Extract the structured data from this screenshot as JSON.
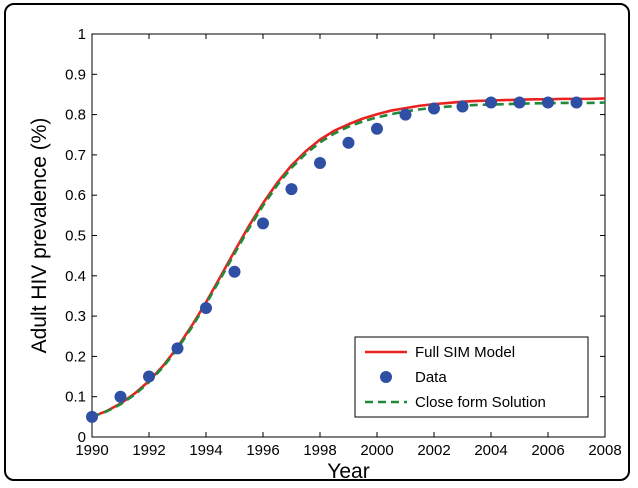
{
  "chart_data": {
    "type": "line",
    "xlabel": "Year",
    "ylabel": "Adult HIV prevalence (%)",
    "xlim": [
      1990,
      2008
    ],
    "ylim": [
      0,
      1
    ],
    "xticks": [
      "1990",
      "1992",
      "1994",
      "1996",
      "1998",
      "2000",
      "2002",
      "2004",
      "2006",
      "2008"
    ],
    "yticks": [
      "0",
      "0.1",
      "0.2",
      "0.3",
      "0.4",
      "0.5",
      "0.6",
      "0.7",
      "0.8",
      "0.9",
      "1"
    ],
    "grid": false,
    "legend_position": "bottom-right",
    "series": [
      {
        "name": "Full SIM Model",
        "style": "solid-line",
        "color": "#e8231f",
        "x": [
          1990,
          1990.5,
          1991,
          1991.5,
          1992,
          1992.5,
          1993,
          1993.5,
          1994,
          1994.5,
          1995,
          1995.5,
          1996,
          1996.5,
          1997,
          1997.5,
          1998,
          1998.5,
          1999,
          1999.5,
          2000,
          2000.5,
          2001,
          2001.5,
          2002,
          2002.5,
          2003,
          2003.5,
          2004,
          2004.5,
          2005,
          2005.5,
          2006,
          2006.5,
          2007,
          2007.5,
          2008
        ],
        "y": [
          0.05,
          0.064,
          0.083,
          0.108,
          0.139,
          0.177,
          0.223,
          0.276,
          0.334,
          0.397,
          0.461,
          0.523,
          0.58,
          0.631,
          0.674,
          0.709,
          0.738,
          0.76,
          0.776,
          0.79,
          0.801,
          0.81,
          0.816,
          0.822,
          0.826,
          0.829,
          0.832,
          0.834,
          0.835,
          0.836,
          0.837,
          0.838,
          0.838,
          0.839,
          0.839,
          0.839,
          0.84
        ]
      },
      {
        "name": "Data",
        "style": "markers",
        "color": "#2e4fa3",
        "x": [
          1990,
          1991,
          1992,
          1993,
          1994,
          1995,
          1996,
          1997,
          1998,
          1999,
          2000,
          2001,
          2002,
          2003,
          2004,
          2005,
          2006,
          2007
        ],
        "y": [
          0.05,
          0.1,
          0.15,
          0.22,
          0.32,
          0.41,
          0.53,
          0.615,
          0.68,
          0.73,
          0.765,
          0.8,
          0.815,
          0.82,
          0.83,
          0.83,
          0.83,
          0.83
        ]
      },
      {
        "name": "Close form Solution",
        "style": "dashed-line",
        "color": "#1f8a3a",
        "x": [
          1990,
          1990.5,
          1991,
          1991.5,
          1992,
          1992.5,
          1993,
          1993.5,
          1994,
          1994.5,
          1995,
          1995.5,
          1996,
          1996.5,
          1997,
          1997.5,
          1998,
          1998.5,
          1999,
          1999.5,
          2000,
          2000.5,
          2001,
          2001.5,
          2002,
          2002.5,
          2003,
          2003.5,
          2004,
          2004.5,
          2005,
          2005.5,
          2006,
          2006.5,
          2007,
          2007.5,
          2008
        ],
        "y": [
          0.05,
          0.063,
          0.081,
          0.105,
          0.136,
          0.174,
          0.219,
          0.272,
          0.33,
          0.392,
          0.455,
          0.517,
          0.574,
          0.625,
          0.668,
          0.703,
          0.731,
          0.753,
          0.77,
          0.783,
          0.793,
          0.801,
          0.808,
          0.813,
          0.817,
          0.82,
          0.822,
          0.824,
          0.825,
          0.826,
          0.827,
          0.828,
          0.828,
          0.829,
          0.829,
          0.829,
          0.83
        ]
      }
    ]
  }
}
